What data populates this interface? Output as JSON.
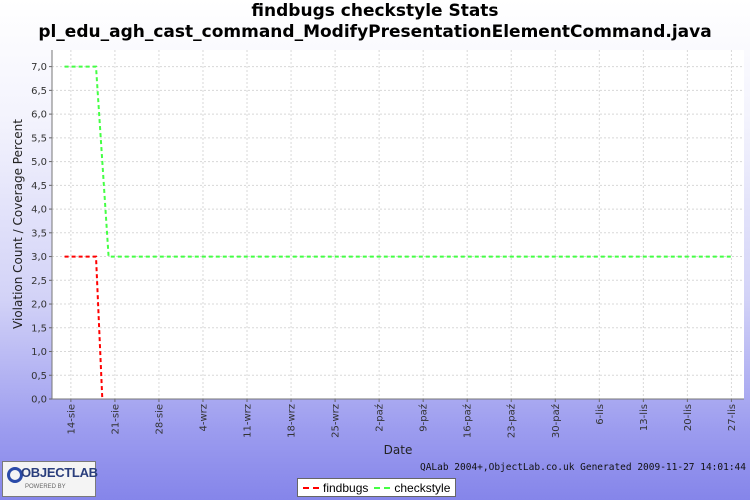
{
  "title_line1": "findbugs checkstyle  Stats",
  "title_line2": "pl_edu_agh_cast_command_ModifyPresentationElementCommand.java",
  "footer": "QALab 2004+,ObjectLab.co.uk Generated 2009-11-27 14:01:44",
  "logo": {
    "text": "OBJECTLAB",
    "subtext": "POWERED BY"
  },
  "chart_data": {
    "type": "line",
    "xlabel": "Date",
    "ylabel": "Violation Count / Coverage Percent",
    "ylim": [
      0,
      7.35
    ],
    "xlim": [
      "2009-08-11",
      "2009-11-29"
    ],
    "y_ticks": [
      "0,0",
      "0,5",
      "1,0",
      "1,5",
      "2,0",
      "2,5",
      "3,0",
      "3,5",
      "4,0",
      "4,5",
      "5,0",
      "5,5",
      "6,0",
      "6,5",
      "7,0"
    ],
    "x_ticks": [
      {
        "date": "2009-08-14",
        "label": "14-sie"
      },
      {
        "date": "2009-08-21",
        "label": "21-sie"
      },
      {
        "date": "2009-08-28",
        "label": "28-sie"
      },
      {
        "date": "2009-09-04",
        "label": "4-wrz"
      },
      {
        "date": "2009-09-11",
        "label": "11-wrz"
      },
      {
        "date": "2009-09-18",
        "label": "18-wrz"
      },
      {
        "date": "2009-09-25",
        "label": "25-wrz"
      },
      {
        "date": "2009-10-02",
        "label": "2-paź"
      },
      {
        "date": "2009-10-09",
        "label": "9-paź"
      },
      {
        "date": "2009-10-16",
        "label": "16-paź"
      },
      {
        "date": "2009-10-23",
        "label": "23-paź"
      },
      {
        "date": "2009-10-30",
        "label": "30-paź"
      },
      {
        "date": "2009-11-06",
        "label": "6-lis"
      },
      {
        "date": "2009-11-13",
        "label": "13-lis"
      },
      {
        "date": "2009-11-20",
        "label": "20-lis"
      },
      {
        "date": "2009-11-27",
        "label": "27-lis"
      }
    ],
    "grid": true,
    "legend_position": "bottom",
    "series": [
      {
        "name": "findbugs",
        "color": "#ff0000",
        "points": [
          {
            "x": "2009-08-13",
            "y": 3.0
          },
          {
            "x": "2009-08-18",
            "y": 3.0
          },
          {
            "x": "2009-08-19",
            "y": 0.0
          }
        ]
      },
      {
        "name": "checkstyle",
        "color": "#44ff44",
        "points": [
          {
            "x": "2009-08-13",
            "y": 7.0
          },
          {
            "x": "2009-08-18",
            "y": 7.0
          },
          {
            "x": "2009-08-20",
            "y": 3.0
          },
          {
            "x": "2009-11-27",
            "y": 3.0
          }
        ]
      }
    ]
  }
}
